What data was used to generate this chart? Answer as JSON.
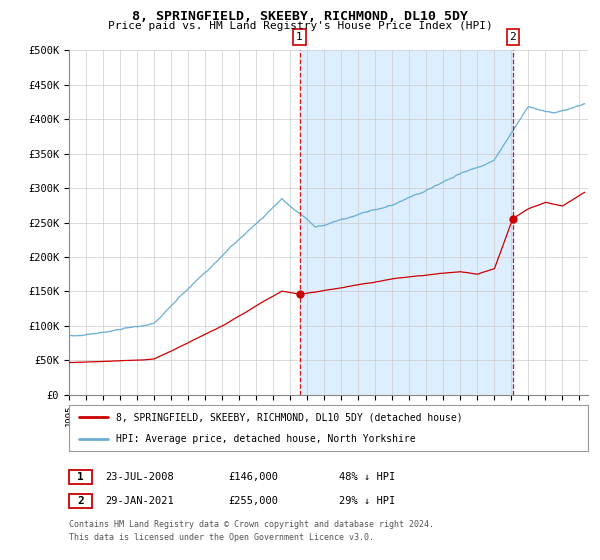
{
  "title": "8, SPRINGFIELD, SKEEBY, RICHMOND, DL10 5DY",
  "subtitle": "Price paid vs. HM Land Registry's House Price Index (HPI)",
  "ylim": [
    0,
    500000
  ],
  "yticks": [
    0,
    50000,
    100000,
    150000,
    200000,
    250000,
    300000,
    350000,
    400000,
    450000,
    500000
  ],
  "ytick_labels": [
    "£0",
    "£50K",
    "£100K",
    "£150K",
    "£200K",
    "£250K",
    "£300K",
    "£350K",
    "£400K",
    "£450K",
    "£500K"
  ],
  "hpi_color": "#6baed6",
  "price_color": "#cc0000",
  "bg_span_color": "#ddeeff",
  "plot_bg": "#ffffff",
  "grid_color": "#cccccc",
  "sale1_date_num": 2008.55,
  "sale1_price": 146000,
  "sale2_date_num": 2021.08,
  "sale2_price": 255000,
  "legend_label_price": "8, SPRINGFIELD, SKEEBY, RICHMOND, DL10 5DY (detached house)",
  "legend_label_hpi": "HPI: Average price, detached house, North Yorkshire",
  "table_row1": [
    "1",
    "23-JUL-2008",
    "£146,000",
    "48% ↓ HPI"
  ],
  "table_row2": [
    "2",
    "29-JAN-2021",
    "£255,000",
    "29% ↓ HPI"
  ],
  "footnote1": "Contains HM Land Registry data © Crown copyright and database right 2024.",
  "footnote2": "This data is licensed under the Open Government Licence v3.0.",
  "xstart": 1995.0,
  "xend": 2025.5
}
